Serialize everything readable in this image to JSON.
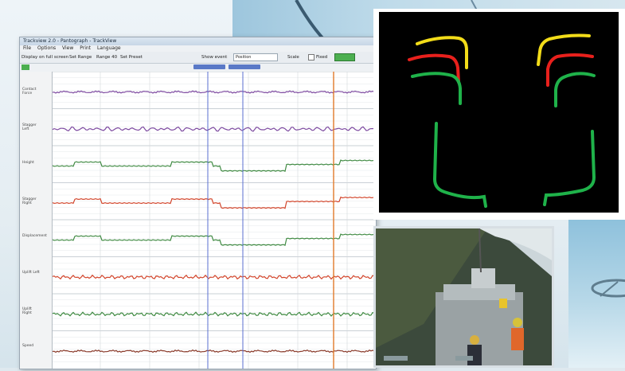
{
  "window": {
    "title": "Trackview 2.0  -  Pantograph  -  TrackView",
    "menu": [
      "File",
      "Options",
      "View",
      "Print",
      "Language"
    ],
    "toolbar": {
      "item1": "Display on full screen",
      "item2": "Set Range",
      "item3": "Range 40",
      "item4": "Set Preset",
      "show_event": "Show event",
      "event_value": "Position",
      "item_scale": "Scale",
      "item_fixed": "Fixed"
    },
    "channels": [
      {
        "label": "Contact Force"
      },
      {
        "label": "Stagger Left"
      },
      {
        "label": "Height"
      },
      {
        "label": "Stagger Right"
      },
      {
        "label": "Displacement"
      },
      {
        "label": "Uplift Left"
      },
      {
        "label": "Uplift Right"
      },
      {
        "label": "Speed"
      }
    ]
  },
  "colors": {
    "purple": "#7d4aa0",
    "green": "#3f8a42",
    "red": "#d2452b",
    "brown": "#8a3a2a",
    "cursor_blue": "#5a6fd0",
    "cursor_orange": "#e07a2a",
    "cam_yellow": "#f2dc19",
    "cam_red": "#e8201c",
    "cam_green": "#1fb24a"
  }
}
